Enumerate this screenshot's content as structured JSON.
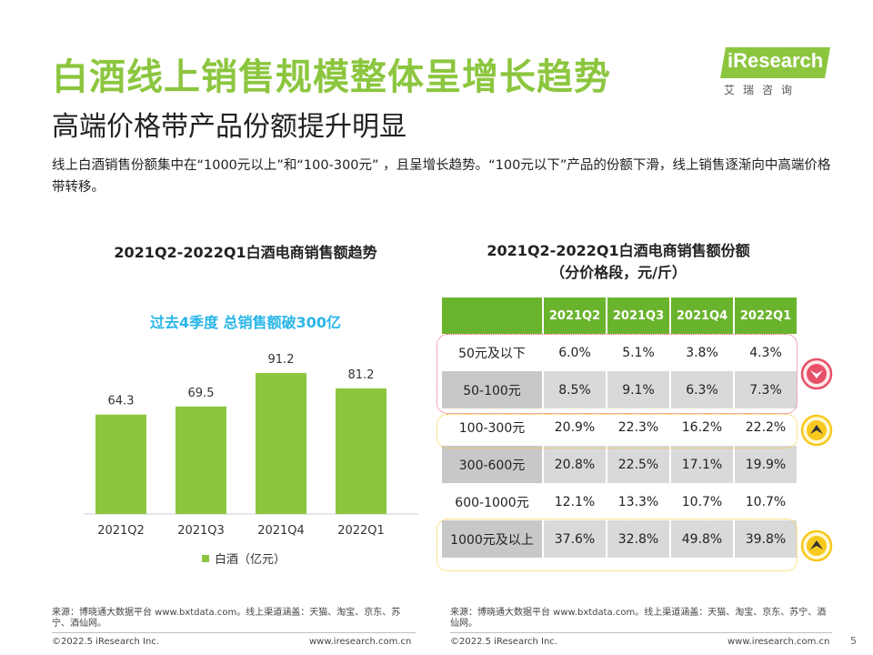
{
  "header": {
    "title": "白酒线上销售规模整体呈增长趋势",
    "subtitle": "高端价格带产品份额提升明显",
    "description": "线上白酒销售份额集中在“1000元以上”和“100-300元” ，且呈增长趋势。“100元以下”产品的份额下滑，线上销售逐渐向中高端价格带转移。"
  },
  "logo": {
    "brand": "iResearch",
    "sub": "艾瑞咨询",
    "brand_color": "#8cc63f"
  },
  "chart_data": [
    {
      "type": "bar",
      "title": "2021Q2-2022Q1白酒电商销售额趋势",
      "highlight": "过去4季度 总销售额破300亿",
      "categories": [
        "2021Q2",
        "2021Q3",
        "2021Q4",
        "2022Q1"
      ],
      "series": [
        {
          "name": "白酒（亿元）",
          "values": [
            64.3,
            69.5,
            91.2,
            81.2
          ]
        }
      ],
      "ylim": [
        0,
        100
      ],
      "grid": false,
      "legend": "bottom",
      "bar_color": "#8cc63f",
      "highlight_color": "#29b6e8"
    },
    {
      "type": "table",
      "title": "2021Q2-2022Q1白酒电商销售额份额",
      "subtitle": "（分价格段，元/斤）",
      "columns": [
        "2021Q2",
        "2021Q3",
        "2021Q4",
        "2022Q1"
      ],
      "rows": [
        {
          "label": "50元及以下",
          "values": [
            "6.0%",
            "5.1%",
            "3.8%",
            "4.3%"
          ]
        },
        {
          "label": "50-100元",
          "values": [
            "8.5%",
            "9.1%",
            "6.3%",
            "7.3%"
          ]
        },
        {
          "label": "100-300元",
          "values": [
            "20.9%",
            "22.3%",
            "16.2%",
            "22.2%"
          ]
        },
        {
          "label": "300-600元",
          "values": [
            "20.8%",
            "22.5%",
            "17.1%",
            "19.9%"
          ]
        },
        {
          "label": "600-1000元",
          "values": [
            "12.1%",
            "13.3%",
            "10.7%",
            "10.7%"
          ]
        },
        {
          "label": "1000元及以上",
          "values": [
            "37.6%",
            "32.8%",
            "49.8%",
            "39.8%"
          ]
        }
      ],
      "header_color": "#6ab42d",
      "indicators": [
        {
          "rows": "50元及以下 / 50-100元",
          "direction": "down",
          "icon": "down-arrow-circle-icon",
          "color": "#e8506a"
        },
        {
          "rows": "100-300元",
          "direction": "up",
          "icon": "up-arrow-circle-icon",
          "color": "#f7c81e"
        },
        {
          "rows": "1000元及以上",
          "direction": "up",
          "icon": "up-arrow-circle-icon",
          "color": "#f7c81e"
        }
      ]
    }
  ],
  "footer": {
    "left_source": "来源：博晓通大数据平台 www.bxtdata.com。线上渠道涵盖：天猫、淘宝、京东、苏宁、酒仙网。",
    "right_source": "来源：博晓通大数据平台 www.bxtdata.com。线上渠道涵盖：天猫、淘宝、京东、苏宁、酒仙网。",
    "left_copyright": "©2022.5 iResearch Inc.",
    "left_site": "www.iresearch.com.cn",
    "right_copyright": "©2022.5 iResearch Inc.",
    "right_site": "www.iresearch.com.cn",
    "page": "5"
  }
}
